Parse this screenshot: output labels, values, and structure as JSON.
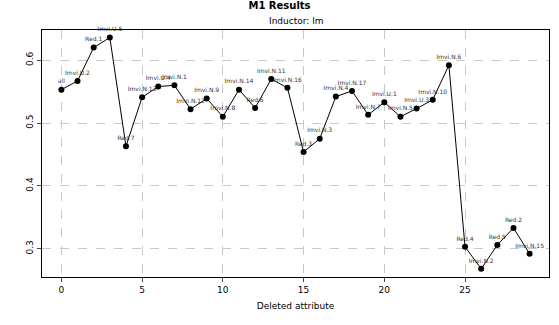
{
  "chart_data": {
    "type": "line",
    "title": "M1 Results",
    "subtitle": "Inductor: lm",
    "x_label": "Deleted attribute",
    "x": [
      0,
      1,
      2,
      3,
      4,
      5,
      6,
      7,
      8,
      9,
      10,
      11,
      12,
      13,
      14,
      15,
      16,
      17,
      18,
      19,
      20,
      21,
      22,
      23,
      24,
      25,
      26,
      27,
      28,
      29
    ],
    "values": [
      0.553,
      0.567,
      0.62,
      0.636,
      0.463,
      0.541,
      0.558,
      0.56,
      0.522,
      0.539,
      0.51,
      0.553,
      0.524,
      0.57,
      0.556,
      0.454,
      0.475,
      0.542,
      0.551,
      0.513,
      0.533,
      0.51,
      0.523,
      0.537,
      0.592,
      0.303,
      0.268,
      0.306,
      0.333,
      0.292
    ],
    "labels": [
      "all",
      "Imvi.U.2",
      "Red.1",
      "Imvi.U.5",
      "Red.7",
      "Imvi.N.13",
      "Imvi.U.4",
      "Imvi.N.1",
      "Imvi.N.12",
      "Imvi.N.9",
      "Imvi.N.8",
      "Imvi.N.14",
      "Red.6",
      "Imvi.N.11",
      "Imvi.N.16",
      "Red.3",
      "Imvi.N.3",
      "Imvi.N.4",
      "Imvi.N.17",
      "Imvi.N.7",
      "Imvi.U.1",
      "Imvi.N.5",
      "Imvi.U.3",
      "Imvi.N.10",
      "Imvi.N.6",
      "Red.4",
      "Imvi.N.2",
      "Red.5",
      "Red.2",
      "Imvi.N.15"
    ],
    "color": "#000000",
    "marker": "circle",
    "xlim": [
      -1.2,
      30.2
    ],
    "xticks": [
      0,
      5,
      10,
      15,
      20,
      25
    ],
    "ylim": [
      0.255,
      0.648
    ],
    "yticks": [
      0.3,
      0.4,
      0.5,
      0.6
    ],
    "grid": true
  }
}
